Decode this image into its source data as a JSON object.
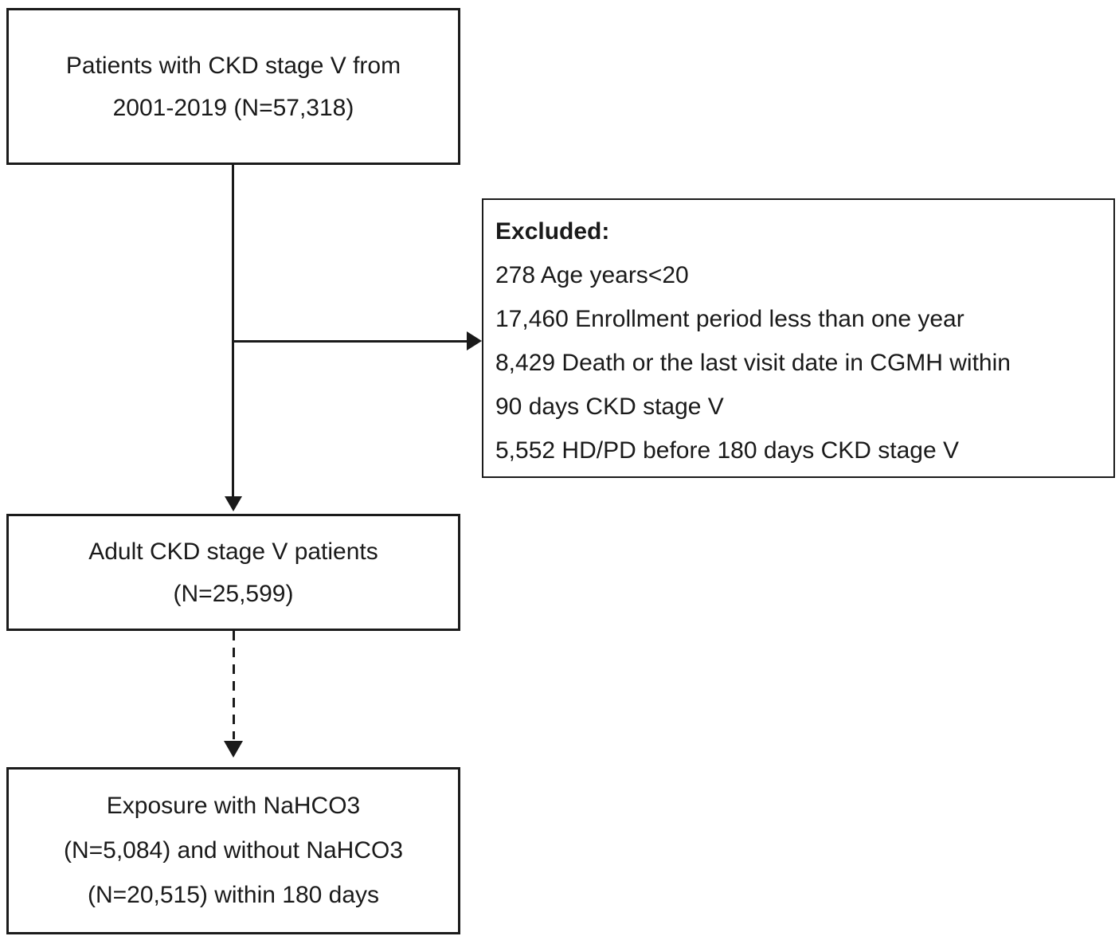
{
  "colors": {
    "background": "#ffffff",
    "line": "#1a1a1a",
    "text": "#1a1a1a",
    "box_border": "#1b1b1b"
  },
  "boxes": {
    "top": {
      "lines": [
        "Patients with CKD stage V from",
        "2001-2019 (N=57,318)"
      ]
    },
    "excluded": {
      "title": "Excluded:",
      "items": [
        "278 Age years<20",
        "17,460 Enrollment period less than one year",
        "8,429 Death or the last visit date in CGMH within",
        "90 days CKD stage V",
        "5,552 HD/PD before 180 days CKD stage V"
      ]
    },
    "middle": {
      "lines": [
        "Adult CKD stage V patients",
        "(N=25,599)"
      ]
    },
    "bottom": {
      "lines": [
        "Exposure with NaHCO3",
        "(N=5,084) and without NaHCO3",
        "(N=20,515) within 180 days"
      ]
    }
  }
}
